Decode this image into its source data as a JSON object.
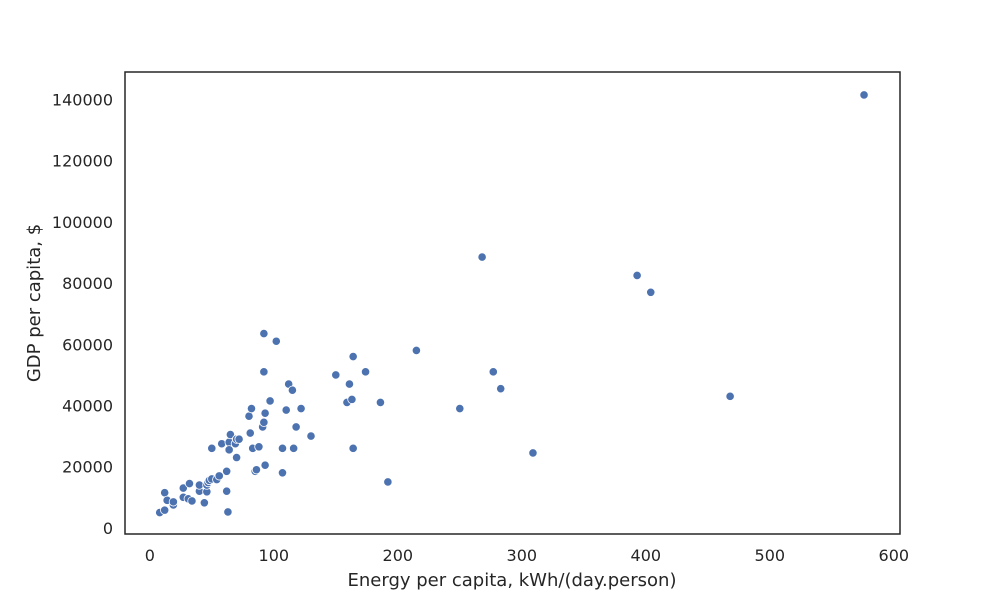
{
  "chart_data": {
    "type": "scatter",
    "title": "",
    "xlabel": "Energy per capita, kWh/(day.person)",
    "ylabel": "GDP per capita, $",
    "xlim": [
      -20,
      605
    ],
    "ylim": [
      -2000,
      149000
    ],
    "xticks": [
      0,
      100,
      200,
      300,
      400,
      500,
      600
    ],
    "yticks": [
      0,
      20000,
      40000,
      60000,
      80000,
      100000,
      120000,
      140000
    ],
    "xtick_labels": [
      "0",
      "100",
      "200",
      "300",
      "400",
      "500",
      "600"
    ],
    "ytick_labels": [
      "0",
      "20000",
      "40000",
      "60000",
      "80000",
      "100000",
      "120000",
      "140000"
    ],
    "grid": false,
    "color": "#4c72b0",
    "points": [
      [
        8,
        5000
      ],
      [
        12,
        5800
      ],
      [
        12,
        11500
      ],
      [
        14,
        9000
      ],
      [
        19,
        7500
      ],
      [
        19,
        8500
      ],
      [
        27,
        10000
      ],
      [
        27,
        13000
      ],
      [
        31,
        9500
      ],
      [
        32,
        14500
      ],
      [
        34,
        8800
      ],
      [
        40,
        12000
      ],
      [
        40,
        14000
      ],
      [
        44,
        8200
      ],
      [
        46,
        11800
      ],
      [
        46,
        14000
      ],
      [
        47,
        14800
      ],
      [
        48,
        15500
      ],
      [
        50,
        16000
      ],
      [
        50,
        26000
      ],
      [
        54,
        15800
      ],
      [
        56,
        17000
      ],
      [
        58,
        27500
      ],
      [
        62,
        12000
      ],
      [
        62,
        18500
      ],
      [
        63,
        5200
      ],
      [
        64,
        28000
      ],
      [
        64,
        25500
      ],
      [
        65,
        30500
      ],
      [
        69,
        27500
      ],
      [
        70,
        23000
      ],
      [
        70,
        29000
      ],
      [
        72,
        29000
      ],
      [
        80,
        36500
      ],
      [
        81,
        31000
      ],
      [
        82,
        39000
      ],
      [
        83,
        26000
      ],
      [
        85,
        18500
      ],
      [
        86,
        19000
      ],
      [
        88,
        26500
      ],
      [
        91,
        33000
      ],
      [
        92,
        34500
      ],
      [
        92,
        63500
      ],
      [
        92,
        51000
      ],
      [
        93,
        20500
      ],
      [
        93,
        37500
      ],
      [
        97,
        41500
      ],
      [
        102,
        61000
      ],
      [
        107,
        26000
      ],
      [
        107,
        18000
      ],
      [
        110,
        38500
      ],
      [
        112,
        47000
      ],
      [
        115,
        45000
      ],
      [
        116,
        26000
      ],
      [
        118,
        33000
      ],
      [
        122,
        39000
      ],
      [
        130,
        30000
      ],
      [
        150,
        50000
      ],
      [
        159,
        41000
      ],
      [
        161,
        47000
      ],
      [
        163,
        42000
      ],
      [
        164,
        26000
      ],
      [
        164,
        56000
      ],
      [
        174,
        51000
      ],
      [
        186,
        41000
      ],
      [
        192,
        15000
      ],
      [
        215,
        58000
      ],
      [
        250,
        39000
      ],
      [
        268,
        88500
      ],
      [
        277,
        51000
      ],
      [
        283,
        45500
      ],
      [
        309,
        24500
      ],
      [
        393,
        82500
      ],
      [
        404,
        77000
      ],
      [
        468,
        43000
      ],
      [
        576,
        141500
      ]
    ]
  }
}
